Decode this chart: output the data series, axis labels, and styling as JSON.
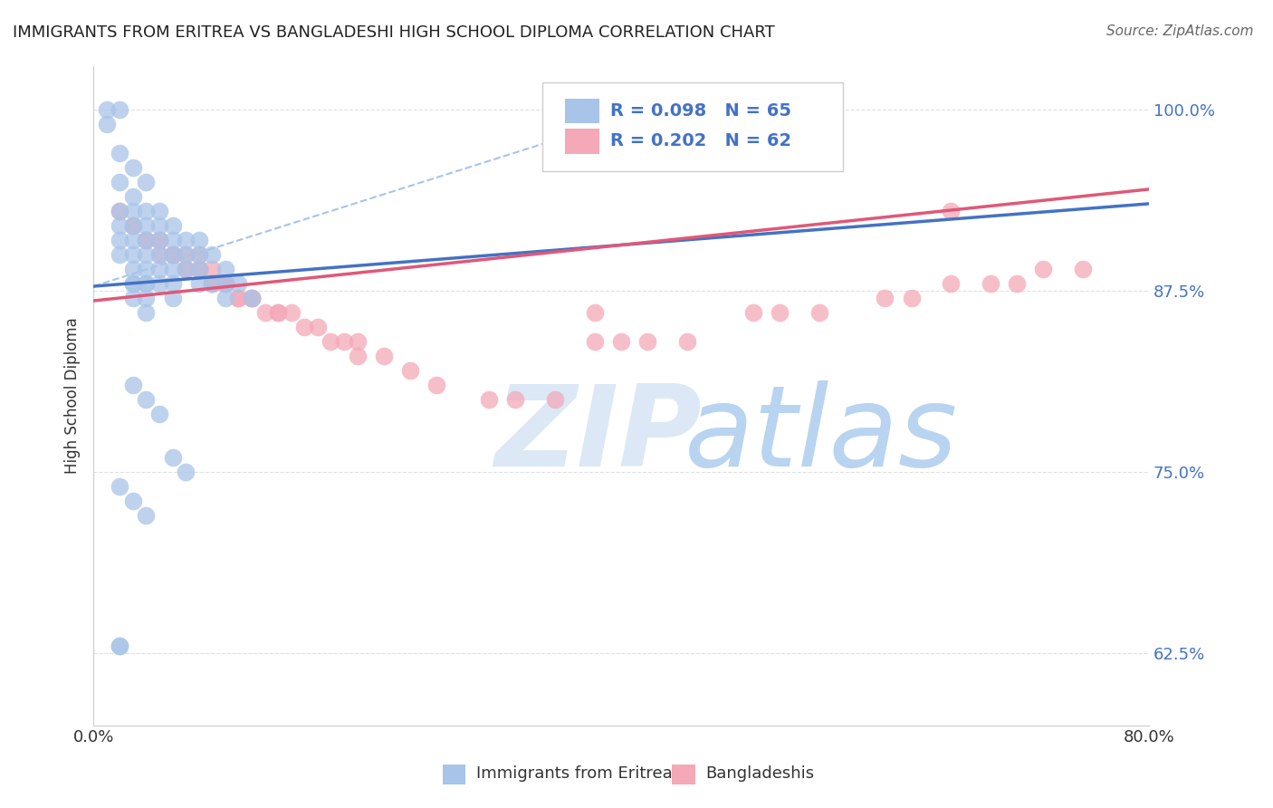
{
  "title": "IMMIGRANTS FROM ERITREA VS BANGLADESHI HIGH SCHOOL DIPLOMA CORRELATION CHART",
  "source": "Source: ZipAtlas.com",
  "xlabel_bottom": "Immigrants from Eritrea",
  "xlabel_bottom2": "Bangladeshis",
  "ylabel": "High School Diploma",
  "xlim": [
    0.0,
    0.8
  ],
  "ylim": [
    0.575,
    1.03
  ],
  "yticks": [
    0.625,
    0.75,
    0.875,
    1.0
  ],
  "ytick_labels": [
    "62.5%",
    "75.0%",
    "87.5%",
    "100.0%"
  ],
  "r_eritrea": 0.098,
  "n_eritrea": 65,
  "r_bangla": 0.202,
  "n_bangla": 62,
  "blue_color": "#a8c4e8",
  "pink_color": "#f4a8b8",
  "blue_line_color": "#4472c4",
  "pink_line_color": "#e05878",
  "dashed_line_color": "#a8c4e8",
  "background_color": "#ffffff",
  "grid_color": "#e0e0e0",
  "watermark_zip": "ZIP",
  "watermark_atlas": "atlas",
  "watermark_color_zip": "#dce8f5",
  "watermark_color_atlas": "#b8d4f0",
  "legend_r_color": "#4472c4",
  "legend_box_blue": "#a8c4e8",
  "legend_box_pink": "#f4a8b8",
  "blue_line_x0": 0.0,
  "blue_line_y0": 0.878,
  "blue_line_x1": 0.8,
  "blue_line_y1": 0.935,
  "pink_line_x0": 0.0,
  "pink_line_y0": 0.868,
  "pink_line_x1": 0.8,
  "pink_line_y1": 0.945,
  "dashed_line_x0": 0.0,
  "dashed_line_y0": 0.878,
  "dashed_line_x1": 0.44,
  "dashed_line_y1": 1.005,
  "blue_scatter_x": [
    0.01,
    0.01,
    0.02,
    0.02,
    0.02,
    0.02,
    0.02,
    0.02,
    0.02,
    0.03,
    0.03,
    0.03,
    0.03,
    0.03,
    0.03,
    0.03,
    0.03,
    0.03,
    0.03,
    0.04,
    0.04,
    0.04,
    0.04,
    0.04,
    0.04,
    0.04,
    0.04,
    0.04,
    0.04,
    0.05,
    0.05,
    0.05,
    0.05,
    0.05,
    0.05,
    0.06,
    0.06,
    0.06,
    0.06,
    0.06,
    0.06,
    0.07,
    0.07,
    0.07,
    0.08,
    0.08,
    0.08,
    0.08,
    0.09,
    0.09,
    0.1,
    0.1,
    0.1,
    0.11,
    0.12,
    0.03,
    0.04,
    0.05,
    0.06,
    0.07,
    0.02,
    0.03,
    0.04,
    0.02,
    0.02
  ],
  "blue_scatter_y": [
    1.0,
    0.99,
    1.0,
    0.97,
    0.95,
    0.93,
    0.92,
    0.91,
    0.9,
    0.96,
    0.94,
    0.93,
    0.92,
    0.91,
    0.9,
    0.89,
    0.88,
    0.88,
    0.87,
    0.95,
    0.93,
    0.92,
    0.91,
    0.9,
    0.89,
    0.88,
    0.88,
    0.87,
    0.86,
    0.93,
    0.92,
    0.91,
    0.9,
    0.89,
    0.88,
    0.92,
    0.91,
    0.9,
    0.89,
    0.88,
    0.87,
    0.91,
    0.9,
    0.89,
    0.91,
    0.9,
    0.89,
    0.88,
    0.9,
    0.88,
    0.89,
    0.88,
    0.87,
    0.88,
    0.87,
    0.81,
    0.8,
    0.79,
    0.76,
    0.75,
    0.74,
    0.73,
    0.72,
    0.63,
    0.63
  ],
  "pink_scatter_x": [
    0.02,
    0.03,
    0.04,
    0.05,
    0.06,
    0.07,
    0.08,
    0.03,
    0.04,
    0.05,
    0.06,
    0.07,
    0.08,
    0.09,
    0.1,
    0.05,
    0.06,
    0.07,
    0.08,
    0.09,
    0.1,
    0.11,
    0.12,
    0.08,
    0.09,
    0.1,
    0.11,
    0.12,
    0.13,
    0.14,
    0.1,
    0.12,
    0.14,
    0.16,
    0.15,
    0.17,
    0.19,
    0.2,
    0.18,
    0.2,
    0.22,
    0.24,
    0.26,
    0.3,
    0.32,
    0.35,
    0.38,
    0.4,
    0.42,
    0.45,
    0.5,
    0.52,
    0.55,
    0.6,
    0.62,
    0.65,
    0.68,
    0.7,
    0.72,
    0.75,
    0.38,
    0.65
  ],
  "pink_scatter_y": [
    0.93,
    0.92,
    0.91,
    0.9,
    0.9,
    0.89,
    0.89,
    0.92,
    0.91,
    0.91,
    0.9,
    0.89,
    0.89,
    0.88,
    0.88,
    0.91,
    0.9,
    0.9,
    0.89,
    0.88,
    0.88,
    0.87,
    0.87,
    0.9,
    0.89,
    0.88,
    0.87,
    0.87,
    0.86,
    0.86,
    0.88,
    0.87,
    0.86,
    0.85,
    0.86,
    0.85,
    0.84,
    0.84,
    0.84,
    0.83,
    0.83,
    0.82,
    0.81,
    0.8,
    0.8,
    0.8,
    0.84,
    0.84,
    0.84,
    0.84,
    0.86,
    0.86,
    0.86,
    0.87,
    0.87,
    0.88,
    0.88,
    0.88,
    0.89,
    0.89,
    0.86,
    0.93
  ]
}
